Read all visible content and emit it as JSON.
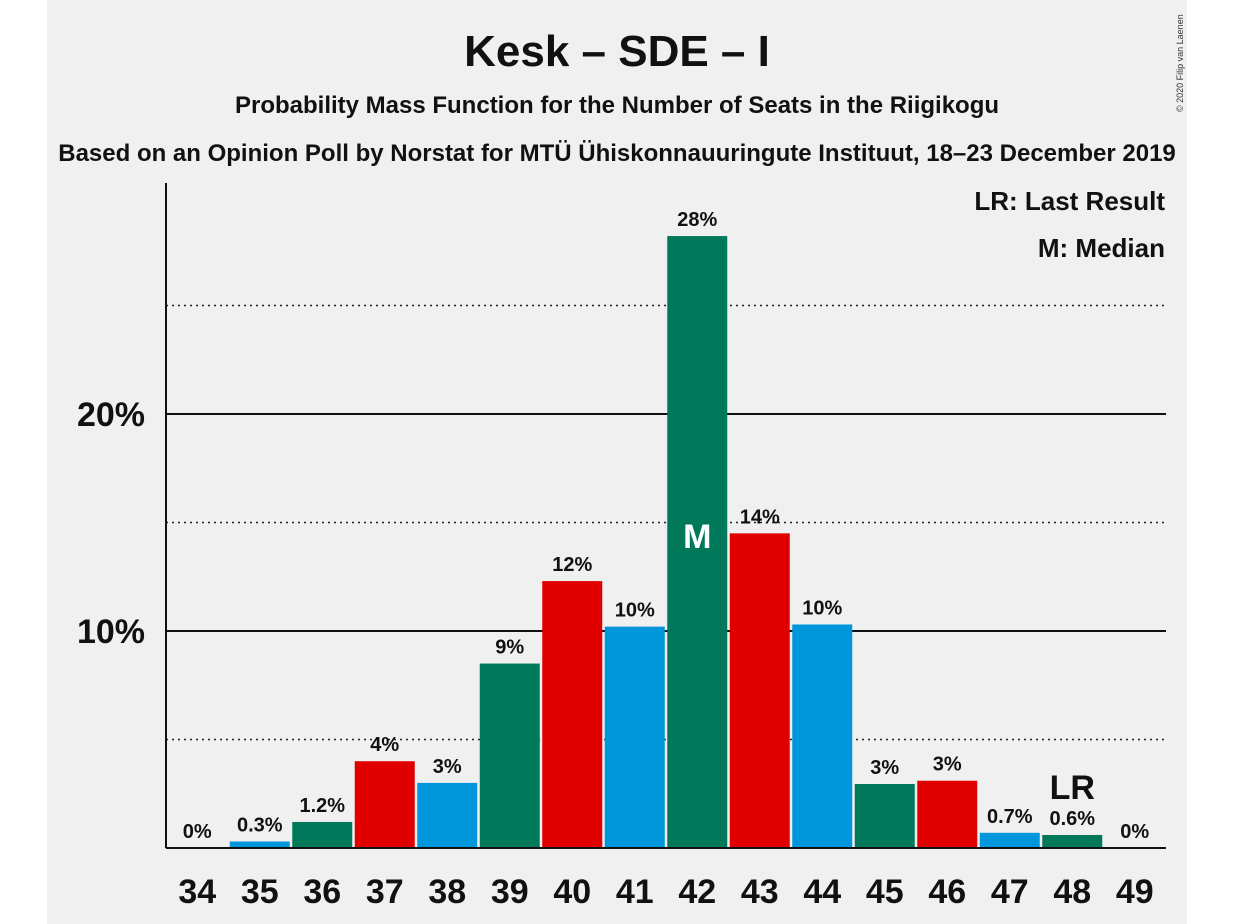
{
  "copyright": "© 2020 Filip van Laenen",
  "chart_data": {
    "type": "bar",
    "title": "Kesk – SDE – I",
    "subtitle": "Probability Mass Function for the Number of Seats in the Riigikogu",
    "subtitle2": "Based on an Opinion Poll by Norstat for MTÜ Ühiskonnauuringute Instituut, 18–23 December 2019",
    "legend": [
      "LR: Last Result",
      "M: Median"
    ],
    "legend_position": "top-right",
    "categories": [
      "34",
      "35",
      "36",
      "37",
      "38",
      "39",
      "40",
      "41",
      "42",
      "43",
      "44",
      "45",
      "46",
      "47",
      "48",
      "49"
    ],
    "values": [
      0,
      0.3,
      1.2,
      4.0,
      3.0,
      8.5,
      12.3,
      10.2,
      28.2,
      14.5,
      10.3,
      2.95,
      3.1,
      0.7,
      0.6,
      0
    ],
    "labels": [
      "0%",
      "0.3%",
      "1.2%",
      "4%",
      "3%",
      "9%",
      "12%",
      "10%",
      "28%",
      "14%",
      "10%",
      "3%",
      "3%",
      "0.7%",
      "0.6%",
      "0%"
    ],
    "bar_colors": [
      "#00785a",
      "#0096dc",
      "#00785a",
      "#e10000",
      "#0096dc",
      "#00785a",
      "#e10000",
      "#0096dc",
      "#00785a",
      "#e10000",
      "#0096dc",
      "#00785a",
      "#e10000",
      "#0096dc",
      "#00785a",
      "#e10000"
    ],
    "median_category": "42",
    "median_marker": "M",
    "last_result_category": "48",
    "last_result_marker": "LR",
    "yticks": [
      {
        "value": 10,
        "label": "10%"
      },
      {
        "value": 20,
        "label": "20%"
      }
    ],
    "minor_gridlines": [
      5,
      15,
      25
    ],
    "ylim": [
      0,
      30
    ]
  }
}
